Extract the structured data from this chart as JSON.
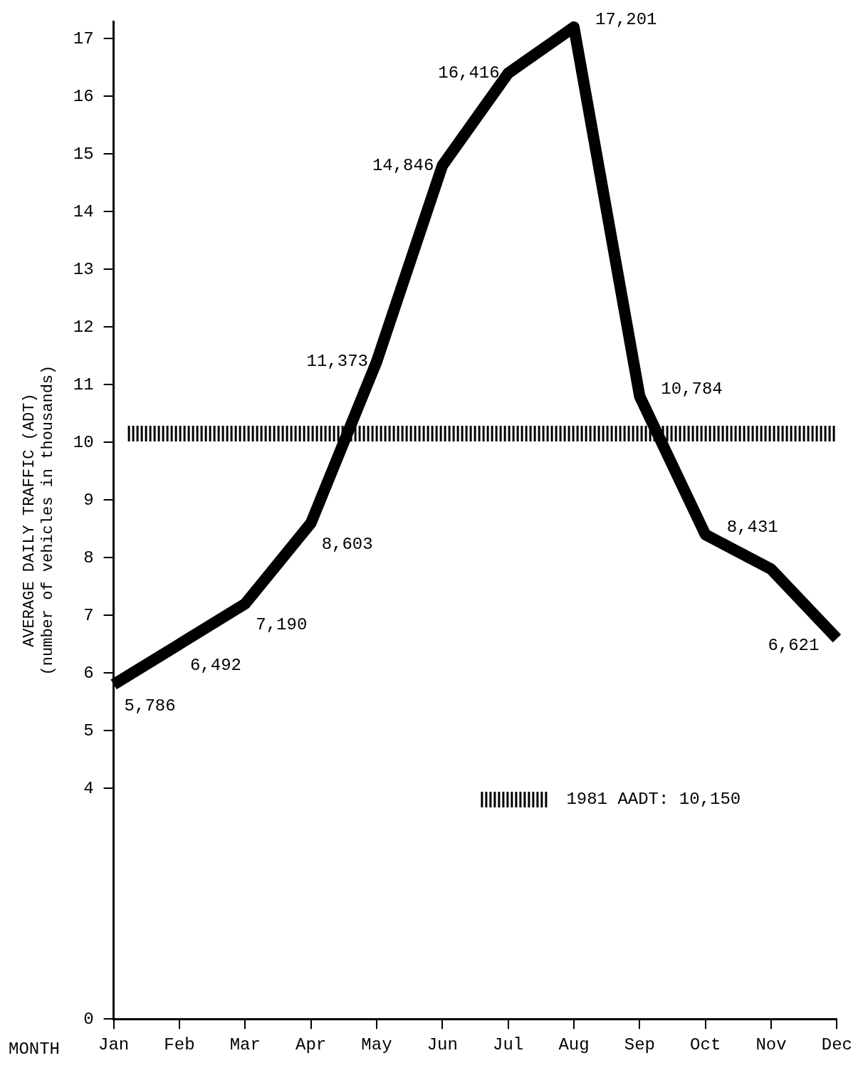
{
  "chart_data": {
    "type": "line",
    "xlabel": "MONTH",
    "ylabel": "AVERAGE DAILY TRAFFIC (ADT)\n(number of vehicles in thousands)",
    "categories": [
      "Jan",
      "Feb",
      "Mar",
      "Apr",
      "May",
      "Jun",
      "Jul",
      "Aug",
      "Sep",
      "Oct",
      "Nov",
      "Dec"
    ],
    "series": [
      {
        "color": "#000000",
        "values": [
          5.8,
          6.5,
          7.2,
          8.6,
          11.4,
          14.8,
          16.4,
          17.2,
          10.8,
          8.4,
          7.8,
          6.6
        ]
      }
    ],
    "annotations": [
      {
        "text": "5,786",
        "x": "Jan",
        "y": 5.8
      },
      {
        "text": "6,492",
        "x": "Feb",
        "y": 6.5
      },
      {
        "text": "7,190",
        "x": "Mar",
        "y": 7.2
      },
      {
        "text": "8,603",
        "x": "Apr",
        "y": 8.6
      },
      {
        "text": "11,373",
        "x": "May",
        "y": 11.4
      },
      {
        "text": "14,846",
        "x": "Jun",
        "y": 14.8
      },
      {
        "text": "16,416",
        "x": "Jul",
        "y": 16.4
      },
      {
        "text": "17,201",
        "x": "Aug",
        "y": 17.2
      },
      {
        "text": "10,784",
        "x": "Sep",
        "y": 10.8
      },
      {
        "text": "8,431",
        "x": "Oct",
        "y": 8.4
      },
      {
        "text": "6,621",
        "x": "Dec",
        "y": 6.6
      }
    ],
    "ylim": [
      0,
      17.3
    ],
    "yticks": [
      0,
      4,
      5,
      6,
      7,
      8,
      9,
      10,
      11,
      12,
      13,
      14,
      15,
      16,
      17
    ],
    "ref_lines": [
      {
        "axis": "y",
        "value": 10.15,
        "label": "1981 AADT: 10,150",
        "color": "#000000",
        "line_style": "dotted"
      }
    ],
    "grid": false,
    "legend": "bottom right",
    "marker": "none",
    "line_style": "solid"
  }
}
